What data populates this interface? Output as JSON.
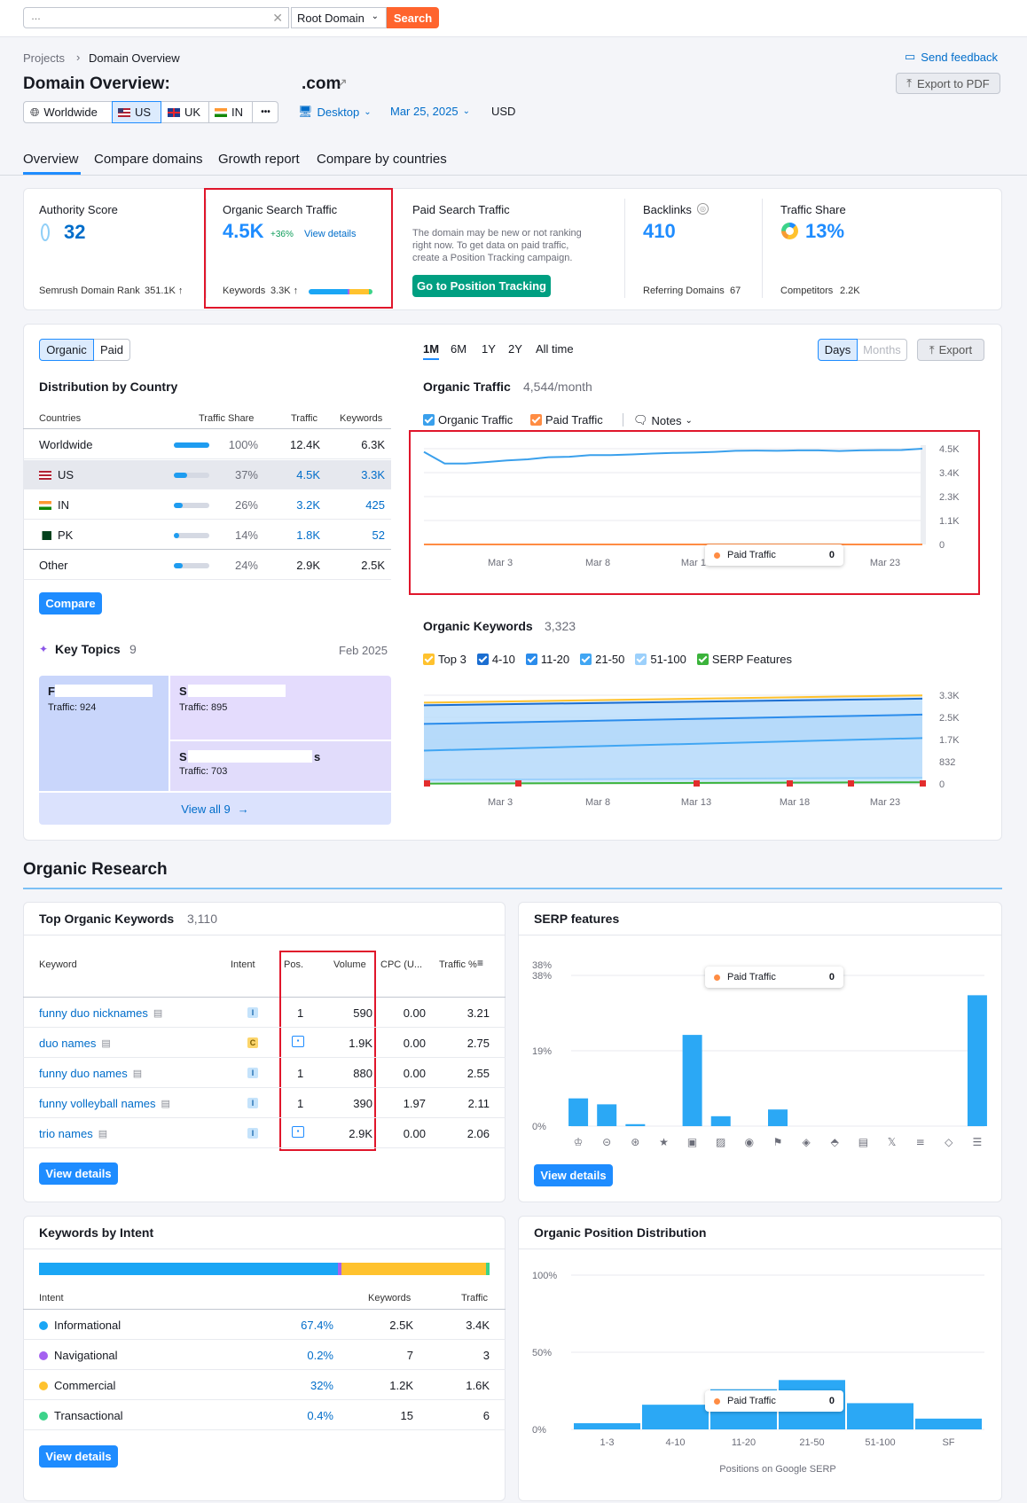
{
  "search": {
    "value": "…",
    "domain_type": "Root Domain",
    "button": "Search"
  },
  "breadcrumb": {
    "projects": "Projects",
    "current": "Domain Overview"
  },
  "header": {
    "title": "Domain Overview:",
    "domain_suffix": ".com",
    "send_feedback": "Send feedback",
    "export_pdf": "Export to PDF"
  },
  "filters": {
    "worldwide": "Worldwide",
    "us": "US",
    "uk": "UK",
    "in": "IN",
    "more": "•••",
    "device": "Desktop",
    "date": "Mar 25, 2025",
    "currency": "USD"
  },
  "tabs": [
    "Overview",
    "Compare domains",
    "Growth report",
    "Compare by countries"
  ],
  "summary": {
    "authority": {
      "label": "Authority Score",
      "value": "32",
      "rank_label": "Semrush Domain Rank",
      "rank_value": "351.1K ↑"
    },
    "organic": {
      "label": "Organic Search Traffic",
      "value": "4.5K",
      "change": "+36%",
      "view": "View details",
      "kw_label": "Keywords",
      "kw_value": "3.3K ↑"
    },
    "paid": {
      "label": "Paid Search Traffic",
      "desc1": "The domain may be new or not ranking",
      "desc2": "right now. To get data on paid traffic,",
      "desc3": "create a Position Tracking campaign.",
      "button": "Go to Position Tracking"
    },
    "backlinks": {
      "label": "Backlinks",
      "value": "410",
      "ref_label": "Referring Domains",
      "ref_value": "67"
    },
    "share": {
      "label": "Traffic Share",
      "value": "13%",
      "comp_label": "Competitors",
      "comp_value": "2.2K"
    }
  },
  "distribution": {
    "toggle": [
      "Organic",
      "Paid"
    ],
    "title": "Distribution by Country",
    "headers": [
      "Countries",
      "Traffic Share",
      "Traffic",
      "Keywords"
    ],
    "rows": [
      {
        "country": "Worldwide",
        "share": "100%",
        "share_val": 100,
        "traffic": "12.4K",
        "keywords": "6.3K"
      },
      {
        "country": "US",
        "share": "37%",
        "share_val": 37,
        "traffic": "4.5K",
        "keywords": "3.3K"
      },
      {
        "country": "IN",
        "share": "26%",
        "share_val": 26,
        "traffic": "3.2K",
        "keywords": "425"
      },
      {
        "country": "PK",
        "share": "14%",
        "share_val": 14,
        "traffic": "1.8K",
        "keywords": "52"
      },
      {
        "country": "Other",
        "share": "24%",
        "share_val": 24,
        "traffic": "2.9K",
        "keywords": "2.5K"
      }
    ],
    "compare": "Compare"
  },
  "topics": {
    "title": "Key Topics",
    "count": "9",
    "date": "Feb 2025",
    "items": [
      {
        "name": "F",
        "traffic": "Traffic: 924"
      },
      {
        "name": "S",
        "traffic": "Traffic: 895"
      },
      {
        "name": "S",
        "suffix": "s",
        "traffic": "Traffic: 703"
      }
    ],
    "view_all": "View all 9"
  },
  "traffic_chart": {
    "periods": [
      "1M",
      "6M",
      "1Y",
      "2Y",
      "All time"
    ],
    "units": [
      "Days",
      "Months"
    ],
    "export": "Export",
    "title": "Organic Traffic",
    "subtitle": "4,544/month",
    "legend": [
      "Organic Traffic",
      "Paid Traffic"
    ],
    "notes": "Notes",
    "tooltip_label": "Paid Traffic",
    "tooltip_value": "0"
  },
  "chart_data": [
    {
      "type": "line",
      "title": "Organic Traffic",
      "x": [
        "Mar 1",
        "Mar 2",
        "Mar 3",
        "Mar 4",
        "Mar 5",
        "Mar 6",
        "Mar 7",
        "Mar 8",
        "Mar 9",
        "Mar 10",
        "Mar 11",
        "Mar 12",
        "Mar 13",
        "Mar 14",
        "Mar 15",
        "Mar 16",
        "Mar 17",
        "Mar 18",
        "Mar 19",
        "Mar 20",
        "Mar 21",
        "Mar 22",
        "Mar 23",
        "Mar 24",
        "Mar 25"
      ],
      "x_ticks": [
        "Mar 3",
        "Mar 8",
        "Mar 13",
        "Mar 23"
      ],
      "y_ticks": [
        "4.5K",
        "3.4K",
        "2.3K",
        "1.1K",
        "0"
      ],
      "ylim": [
        0,
        4500
      ],
      "series": [
        {
          "name": "Organic Traffic",
          "color": "#3aa0ec",
          "values": [
            4350,
            3800,
            3800,
            3870,
            3950,
            4000,
            4100,
            4120,
            4200,
            4200,
            4230,
            4270,
            4300,
            4320,
            4350,
            4400,
            4410,
            4400,
            4420,
            4420,
            4390,
            4420,
            4430,
            4440,
            4500
          ]
        },
        {
          "name": "Paid Traffic",
          "color": "#ff8c43",
          "values": [
            0,
            0,
            0,
            0,
            0,
            0,
            0,
            0,
            0,
            0,
            0,
            0,
            0,
            0,
            0,
            0,
            0,
            0,
            0,
            0,
            0,
            0,
            0,
            0,
            0
          ]
        }
      ]
    },
    {
      "type": "area",
      "title": "Organic Keywords",
      "subtitle": "3,323",
      "legend": [
        "Top 3",
        "4-10",
        "11-20",
        "21-50",
        "51-100",
        "SERP Features"
      ],
      "x_ticks": [
        "Mar 3",
        "Mar 8",
        "Mar 13",
        "Mar 18",
        "Mar 23"
      ],
      "y_ticks": [
        "3.3K",
        "2.5K",
        "1.7K",
        "832",
        "0"
      ],
      "ylim": [
        0,
        3330
      ],
      "series": [
        {
          "name": "Top 3",
          "color": "#ffc22e",
          "values": [
            3050,
            3323
          ]
        },
        {
          "name": "4-10",
          "color": "#1b6ed1",
          "values": [
            2950,
            3200
          ]
        },
        {
          "name": "11-20",
          "color": "#2b8ceb",
          "values": [
            2250,
            2600
          ]
        },
        {
          "name": "21-50",
          "color": "#41a6f3",
          "values": [
            1250,
            1720
          ]
        },
        {
          "name": "51-100",
          "color": "#9cd0fb",
          "values": [
            150,
            230
          ]
        },
        {
          "name": "SERP Features",
          "color": "#3bb33b",
          "values": [
            10,
            60
          ]
        }
      ]
    },
    {
      "type": "bar",
      "title": "SERP features",
      "y_ticks": [
        "38%",
        "19%",
        "0%"
      ],
      "ylim": [
        0,
        38
      ],
      "values": [
        7,
        5.5,
        0.5,
        0,
        23,
        2.5,
        0,
        4.2,
        0,
        0,
        0,
        0,
        0,
        0,
        33
      ]
    },
    {
      "type": "bar",
      "title": "Organic Position Distribution",
      "categories": [
        "1-3",
        "4-10",
        "11-20",
        "21-50",
        "51-100",
        "SF"
      ],
      "y_ticks": [
        "100%",
        "50%",
        "0%"
      ],
      "ylim": [
        0,
        100
      ],
      "values": [
        4,
        16,
        26,
        32,
        17,
        7
      ],
      "xlabel": "Positions on Google SERP"
    }
  ],
  "keywords_chart": {
    "title": "Organic Keywords",
    "count": "3,323",
    "legend": [
      "Top 3",
      "4-10",
      "11-20",
      "21-50",
      "51-100",
      "SERP Features"
    ]
  },
  "research": {
    "title": "Organic Research"
  },
  "top_keywords": {
    "title": "Top Organic Keywords",
    "count": "3,110",
    "headers": [
      "Keyword",
      "Intent",
      "Pos.",
      "Volume",
      "CPC (U...",
      "Traffic %"
    ],
    "rows": [
      {
        "kw": "funny duo nicknames",
        "intent": "I",
        "pos": "1",
        "volume": "590",
        "cpc": "0.00",
        "traffic": "3.21"
      },
      {
        "kw": "duo names",
        "intent": "C",
        "pos": "",
        "volume": "1.9K",
        "cpc": "0.00",
        "traffic": "2.75"
      },
      {
        "kw": "funny duo names",
        "intent": "I",
        "pos": "1",
        "volume": "880",
        "cpc": "0.00",
        "traffic": "2.55"
      },
      {
        "kw": "funny volleyball names",
        "intent": "I",
        "pos": "1",
        "volume": "390",
        "cpc": "1.97",
        "traffic": "2.11"
      },
      {
        "kw": "trio names",
        "intent": "I",
        "pos": "",
        "volume": "2.9K",
        "cpc": "0.00",
        "traffic": "2.06"
      }
    ],
    "view": "View details"
  },
  "serp": {
    "title": "SERP features",
    "y_top": "38%",
    "view": "View details",
    "tooltip_label": "Paid Traffic",
    "tooltip_value": "0"
  },
  "intent": {
    "title": "Keywords by Intent",
    "headers": [
      "Intent",
      "Keywords",
      "Traffic"
    ],
    "rows": [
      {
        "name": "Informational",
        "color": "#1aa6f5",
        "pct": "67.4%",
        "kw": "2.5K",
        "traffic": "3.4K"
      },
      {
        "name": "Navigational",
        "color": "#a561f0",
        "pct": "0.2%",
        "kw": "7",
        "traffic": "3"
      },
      {
        "name": "Commercial",
        "color": "#ffc22e",
        "pct": "32%",
        "kw": "1.2K",
        "traffic": "1.6K"
      },
      {
        "name": "Transactional",
        "color": "#3cd38a",
        "pct": "0.4%",
        "kw": "15",
        "traffic": "6"
      }
    ],
    "view": "View details"
  },
  "position": {
    "title": "Organic Position Distribution",
    "tooltip_label": "Paid Traffic",
    "tooltip_value": "0"
  }
}
